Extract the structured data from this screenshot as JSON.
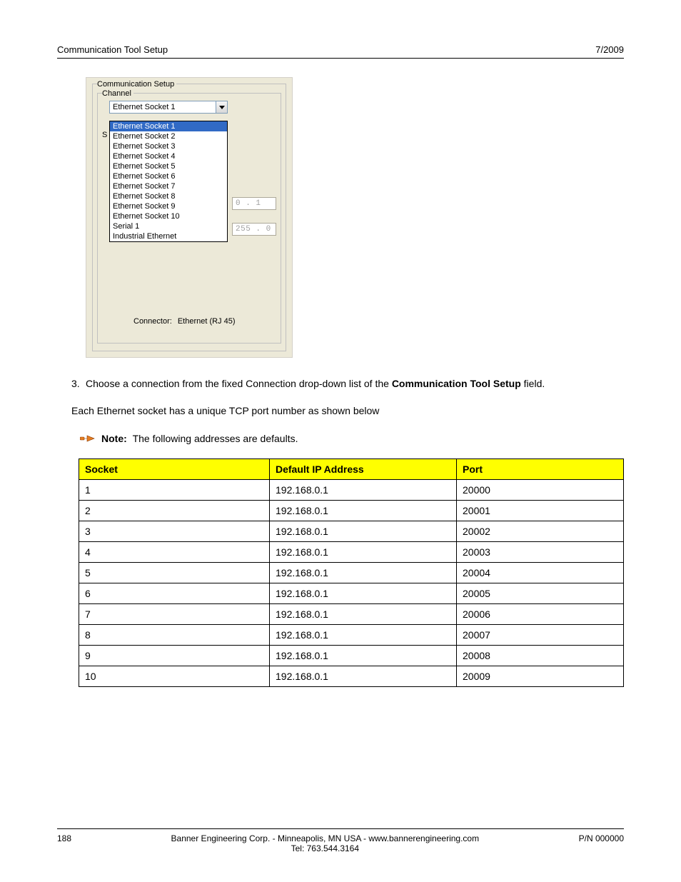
{
  "header": {
    "left": "Communication Tool Setup",
    "right": "7/2009"
  },
  "screenshot": {
    "fieldset_outer_legend": "Communication Setup",
    "fieldset_inner_legend": "Channel",
    "combo_value": "Ethernet Socket 1",
    "dropdown_items": [
      "Ethernet Socket 1",
      "Ethernet Socket 2",
      "Ethernet Socket 3",
      "Ethernet Socket 4",
      "Ethernet Socket 5",
      "Ethernet Socket 6",
      "Ethernet Socket 7",
      "Ethernet Socket 8",
      "Ethernet Socket 9",
      "Ethernet Socket 10",
      "Serial 1",
      "Industrial Ethernet"
    ],
    "selected_index": 0,
    "settings_letter": "S",
    "ip_top": "0 .  1",
    "ip_bot": "255 .  0",
    "connector_label": "Connector:",
    "connector_value": "Ethernet (RJ 45)"
  },
  "step3": {
    "num": "3.",
    "text_a": "Choose a connection from the fixed Connection drop-down list of the ",
    "text_bold": "Communication Tool Setup",
    "text_b": " field."
  },
  "para1": "Each Ethernet socket has a unique TCP port number as shown below",
  "note": {
    "label": "Note:",
    "text": "The following addresses are defaults."
  },
  "table": {
    "headers": [
      "Socket",
      "Default IP Address",
      "Port"
    ],
    "rows": [
      [
        "1",
        "192.168.0.1",
        "20000"
      ],
      [
        "2",
        "192.168.0.1",
        "20001"
      ],
      [
        "3",
        "192.168.0.1",
        "20002"
      ],
      [
        "4",
        "192.168.0.1",
        "20003"
      ],
      [
        "5",
        "192.168.0.1",
        "20004"
      ],
      [
        "6",
        "192.168.0.1",
        "20005"
      ],
      [
        "7",
        "192.168.0.1",
        "20006"
      ],
      [
        "8",
        "192.168.0.1",
        "20007"
      ],
      [
        "9",
        "192.168.0.1",
        "20008"
      ],
      [
        "10",
        "192.168.0.1",
        "20009"
      ]
    ]
  },
  "footer": {
    "page": "188",
    "center_line1": "Banner Engineering Corp. - Minneapolis, MN USA - www.bannerengineering.com",
    "center_line2": "Tel: 763.544.3164",
    "right": "P/N 000000"
  }
}
